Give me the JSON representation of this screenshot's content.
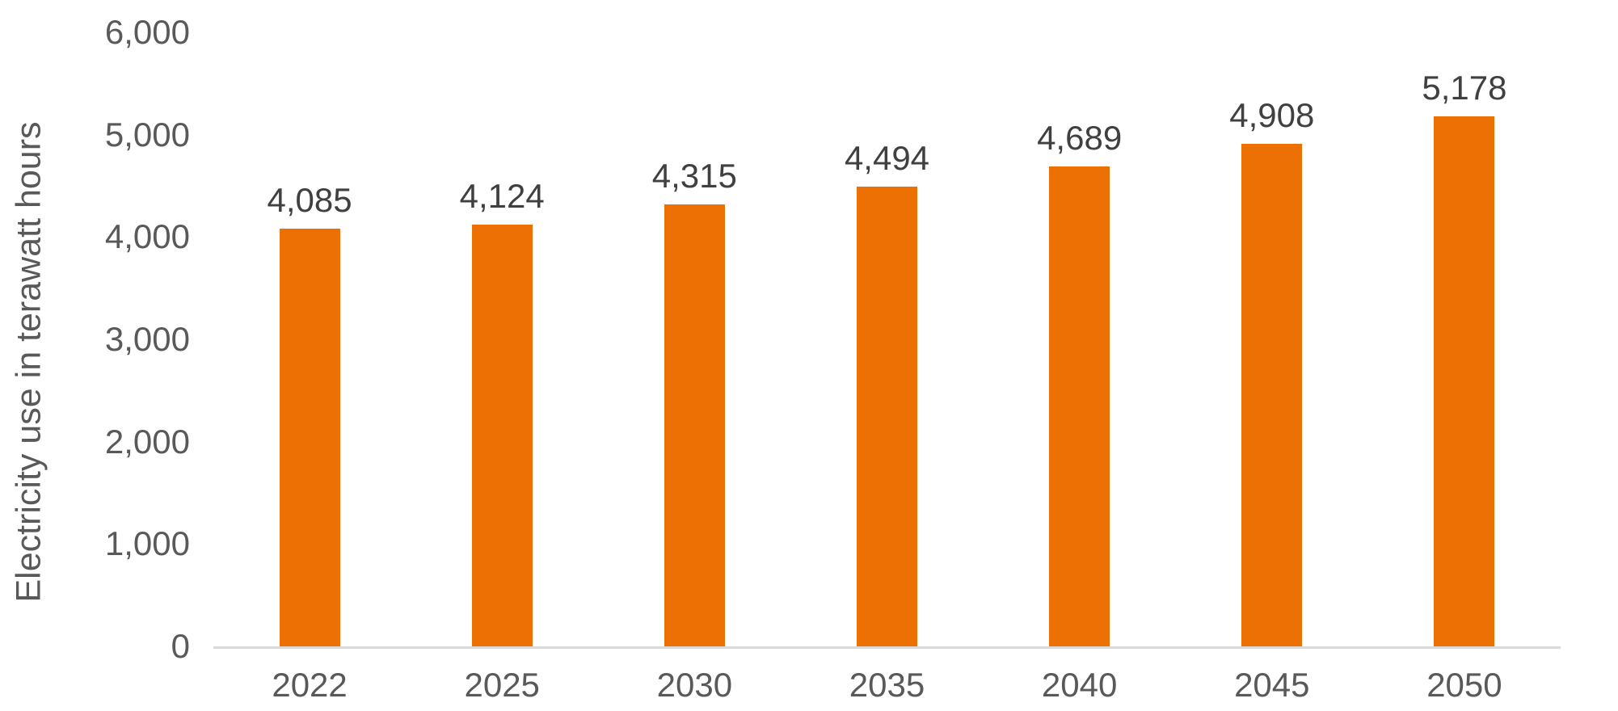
{
  "chart_data": {
    "type": "bar",
    "title": "",
    "xlabel": "",
    "ylabel": "Electricity use in terawatt hours",
    "categories": [
      "2022",
      "2025",
      "2030",
      "2035",
      "2040",
      "2045",
      "2050"
    ],
    "values": [
      4085,
      4124,
      4315,
      4494,
      4689,
      4908,
      5178
    ],
    "ylim": [
      0,
      6000
    ],
    "ytick_step": 1000,
    "yticks": [
      0,
      1000,
      2000,
      3000,
      4000,
      5000,
      6000
    ],
    "grid": false,
    "legend": "none",
    "data_labels_visible": true,
    "colors": {
      "bar": "#ED7004",
      "data_label_text": "#404040",
      "tick_text": "#595959",
      "axis_title_text": "#595959",
      "axis_line": "#D9D9D9",
      "background": "#FFFFFF"
    }
  }
}
